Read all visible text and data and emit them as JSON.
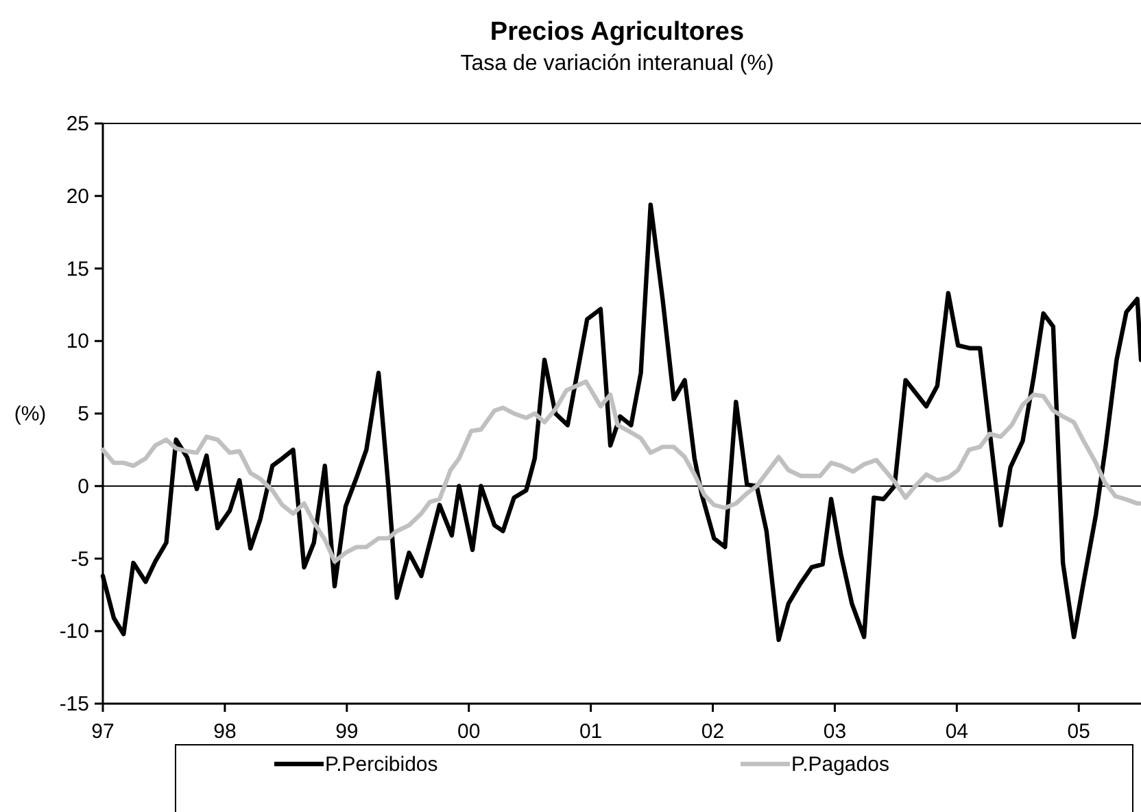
{
  "chart_data": {
    "type": "line",
    "title": "Precios Agricultores",
    "subtitle": "Tasa de variación interanual (%)",
    "ylabel": "(%)",
    "xlim": [
      1997,
      2005.51
    ],
    "xticks": [
      {
        "value": 1997,
        "label": "97"
      },
      {
        "value": 1998,
        "label": "98"
      },
      {
        "value": 1999,
        "label": "99"
      },
      {
        "value": 2000,
        "label": "00"
      },
      {
        "value": 2001,
        "label": "01"
      },
      {
        "value": 2002,
        "label": "02"
      },
      {
        "value": 2003,
        "label": "03"
      },
      {
        "value": 2004,
        "label": "04"
      },
      {
        "value": 2005,
        "label": "05"
      }
    ],
    "ylim": [
      -15,
      25
    ],
    "yticks": [
      -15,
      -10,
      -5,
      0,
      5,
      10,
      15,
      20,
      25
    ],
    "grid": false,
    "legend": "bottom",
    "marker": "none",
    "line_style": "solid",
    "ref_lines": [
      {
        "axis": "y",
        "value": 0,
        "color": "#000000"
      }
    ],
    "series": [
      {
        "name": "P.Percibidos",
        "color": "#000000",
        "x": [
          1997.0,
          1997.09,
          1997.17,
          1997.25,
          1997.35,
          1997.43,
          1997.52,
          1997.6,
          1997.69,
          1997.77,
          1997.85,
          1997.94,
          1998.04,
          1998.12,
          1998.21,
          1998.29,
          1998.39,
          1998.47,
          1998.56,
          1998.65,
          1998.73,
          1998.82,
          1998.9,
          1998.99,
          1999.08,
          1999.16,
          1999.26,
          1999.34,
          1999.41,
          1999.51,
          1999.61,
          1999.76,
          1999.86,
          1999.92,
          2000.03,
          2000.1,
          2000.21,
          2000.28,
          2000.37,
          2000.47,
          2000.54,
          2000.62,
          2000.71,
          2000.81,
          2000.97,
          2001.08,
          2001.16,
          2001.24,
          2001.33,
          2001.41,
          2001.49,
          2001.59,
          2001.68,
          2001.77,
          2001.85,
          2001.91,
          2002.01,
          2002.1,
          2002.19,
          2002.28,
          2002.36,
          2002.44,
          2002.54,
          2002.62,
          2002.72,
          2002.81,
          2002.9,
          2002.97,
          2003.05,
          2003.14,
          2003.24,
          2003.32,
          2003.4,
          2003.49,
          2003.58,
          2003.75,
          2003.84,
          2003.93,
          2004.01,
          2004.11,
          2004.19,
          2004.36,
          2004.44,
          2004.54,
          2004.63,
          2004.71,
          2004.79,
          2004.87,
          2004.96,
          2005.04,
          2005.14,
          2005.22,
          2005.31,
          2005.39,
          2005.48,
          2005.51
        ],
        "values": [
          -6.2,
          -9.1,
          -10.2,
          -5.3,
          -6.6,
          -5.2,
          -3.9,
          3.2,
          2.0,
          -0.2,
          2.1,
          -2.9,
          -1.7,
          0.4,
          -4.3,
          -2.3,
          1.4,
          1.9,
          2.5,
          -5.6,
          -3.9,
          1.4,
          -6.9,
          -1.4,
          0.6,
          2.5,
          7.8,
          0,
          -7.7,
          -4.6,
          -6.2,
          -1.3,
          -3.4,
          0,
          -4.4,
          0,
          -2.7,
          -3.1,
          -0.8,
          -0.3,
          1.9,
          8.7,
          5.0,
          4.2,
          11.5,
          12.2,
          2.8,
          4.8,
          4.2,
          7.8,
          19.4,
          12.8,
          6.0,
          7.3,
          1.9,
          -0.6,
          -3.6,
          -4.2,
          5.8,
          0.1,
          0,
          -3.1,
          -10.6,
          -8.1,
          -6.7,
          -5.6,
          -5.4,
          -0.9,
          -4.7,
          -8.1,
          -10.4,
          -0.8,
          -0.9,
          0,
          7.3,
          5.5,
          6.9,
          13.3,
          9.7,
          9.5,
          9.5,
          -2.7,
          1.3,
          3.1,
          7.5,
          11.9,
          11.0,
          -5.3,
          -10.4,
          -6.6,
          -2.0,
          2.7,
          8.7,
          12.0,
          12.9,
          8.7
        ]
      },
      {
        "name": "P.Pagados",
        "color": "#c0c0c0",
        "x": [
          1997.0,
          1997.09,
          1997.17,
          1997.25,
          1997.35,
          1997.43,
          1997.52,
          1997.6,
          1997.69,
          1997.77,
          1997.85,
          1997.94,
          1998.04,
          1998.12,
          1998.21,
          1998.29,
          1998.39,
          1998.47,
          1998.56,
          1998.65,
          1998.73,
          1998.82,
          1998.9,
          1998.99,
          1999.08,
          1999.16,
          1999.26,
          1999.34,
          1999.41,
          1999.51,
          1999.61,
          1999.68,
          1999.76,
          1999.85,
          1999.92,
          2000.02,
          2000.1,
          2000.21,
          2000.28,
          2000.37,
          2000.47,
          2000.54,
          2000.62,
          2000.71,
          2000.8,
          2000.88,
          2000.96,
          2001.08,
          2001.16,
          2001.22,
          2001.33,
          2001.41,
          2001.49,
          2001.59,
          2001.68,
          2001.77,
          2001.85,
          2001.93,
          2002.01,
          2002.1,
          2002.19,
          2002.28,
          2002.36,
          2002.44,
          2002.54,
          2002.62,
          2002.72,
          2002.81,
          2002.88,
          2002.97,
          2003.05,
          2003.15,
          2003.24,
          2003.34,
          2003.49,
          2003.58,
          2003.66,
          2003.75,
          2003.84,
          2003.93,
          2004.01,
          2004.1,
          2004.19,
          2004.27,
          2004.36,
          2004.45,
          2004.54,
          2004.63,
          2004.71,
          2004.79,
          2004.87,
          2004.96,
          2005.04,
          2005.14,
          2005.21,
          2005.3,
          2005.38,
          2005.48,
          2005.51
        ],
        "values": [
          2.5,
          1.6,
          1.6,
          1.4,
          1.9,
          2.8,
          3.2,
          2.6,
          2.4,
          2.3,
          3.4,
          3.2,
          2.3,
          2.4,
          0.9,
          0.5,
          -0.3,
          -1.3,
          -1.9,
          -1.2,
          -2.5,
          -3.7,
          -5.2,
          -4.6,
          -4.2,
          -4.2,
          -3.6,
          -3.6,
          -3.1,
          -2.7,
          -1.9,
          -1.1,
          -0.9,
          1.1,
          1.9,
          3.8,
          3.9,
          5.2,
          5.4,
          5.0,
          4.7,
          5.0,
          4.4,
          5.3,
          6.6,
          6.9,
          7.2,
          5.5,
          6.3,
          4.2,
          3.7,
          3.3,
          2.3,
          2.7,
          2.7,
          2.0,
          0.8,
          -0.6,
          -1.3,
          -1.5,
          -1.2,
          -0.5,
          0,
          0.9,
          2.0,
          1.1,
          0.7,
          0.7,
          0.7,
          1.6,
          1.4,
          1.0,
          1.5,
          1.8,
          0.3,
          -0.8,
          0,
          0.8,
          0.4,
          0.6,
          1.1,
          2.5,
          2.7,
          3.6,
          3.4,
          4.2,
          5.6,
          6.3,
          6.2,
          5.2,
          4.8,
          4.4,
          3.1,
          1.6,
          0.3,
          -0.7,
          -0.9,
          -1.2,
          -1.2
        ]
      }
    ]
  }
}
